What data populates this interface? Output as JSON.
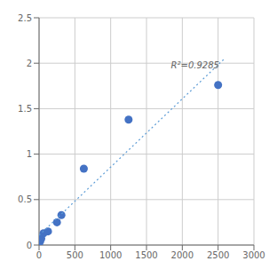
{
  "chart_data": {
    "type": "scatter",
    "xlim": [
      0,
      3000
    ],
    "ylim": [
      0,
      2.5
    ],
    "xticks": [
      0,
      500,
      1000,
      1500,
      2000,
      2500,
      3000
    ],
    "yticks": [
      0,
      0.5,
      1,
      1.5,
      2,
      2.5
    ],
    "grid": true,
    "series": [
      {
        "type": "scatter",
        "marker": "circle",
        "color": "#4472C4",
        "x": [
          0,
          15,
          31,
          62,
          125,
          250,
          312,
          625,
          1250,
          2500
        ],
        "values": [
          0.0,
          0.04,
          0.07,
          0.13,
          0.15,
          0.25,
          0.33,
          0.84,
          1.38,
          1.76
        ]
      },
      {
        "type": "line",
        "line_style": "dotted",
        "color": "#5B9BD5",
        "x": [
          0,
          2600
        ],
        "values": [
          0.10699,
          2.05829
        ]
      }
    ],
    "annotations": [
      {
        "text": "R²=0.9285",
        "x": 1780,
        "y": 1.98
      }
    ]
  }
}
